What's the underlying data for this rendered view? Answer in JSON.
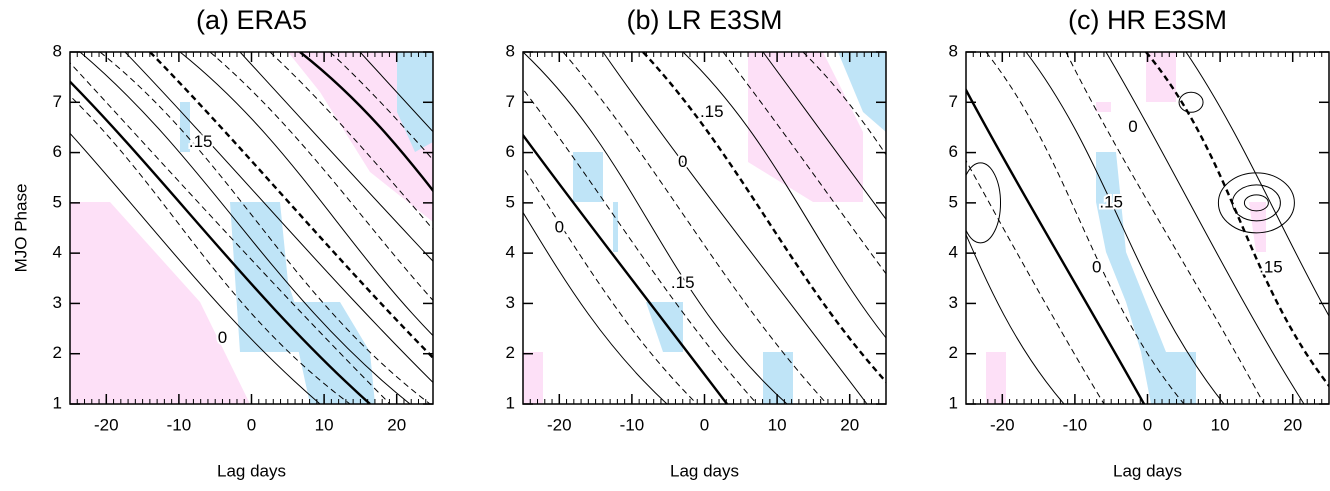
{
  "chart_data": [
    {
      "type": "contour",
      "title": "(a) ERA5",
      "x_label": "Lag days",
      "y_label": "MJO Phase",
      "xlim": [
        -25,
        25
      ],
      "xticks": [
        -20,
        -10,
        0,
        10,
        20
      ],
      "ylim": [
        1,
        8
      ],
      "yticks": [
        1,
        2,
        3,
        4,
        5,
        6,
        7,
        8
      ],
      "annotations": [
        {
          "text": ".15",
          "x": -7,
          "y": 6.2
        },
        {
          "text": "0",
          "x": -4,
          "y": 2.3
        }
      ]
    },
    {
      "type": "contour",
      "title": "(b) LR E3SM",
      "x_label": "Lag days",
      "xlim": [
        -25,
        25
      ],
      "xticks": [
        -20,
        -10,
        0,
        10,
        20
      ],
      "ylim": [
        1,
        8
      ],
      "yticks": [
        1,
        2,
        3,
        4,
        5,
        6,
        7,
        8
      ],
      "annotations": [
        {
          "text": ".15",
          "x": 1,
          "y": 6.8
        },
        {
          "text": "0",
          "x": -3,
          "y": 5.8
        },
        {
          "text": "0",
          "x": -20,
          "y": 4.5
        },
        {
          "text": ".15",
          "x": -3,
          "y": 3.4
        }
      ]
    },
    {
      "type": "contour",
      "title": "(c) HR E3SM",
      "x_label": "Lag days",
      "xlim": [
        -25,
        25
      ],
      "xticks": [
        -20,
        -10,
        0,
        10,
        20
      ],
      "ylim": [
        1,
        8
      ],
      "yticks": [
        1,
        2,
        3,
        4,
        5,
        6,
        7,
        8
      ],
      "annotations": [
        {
          "text": "0",
          "x": -2,
          "y": 6.5
        },
        {
          "text": ".15",
          "x": -5,
          "y": 5
        },
        {
          "text": "0",
          "x": -7,
          "y": 3.7
        },
        {
          "text": ".15",
          "x": 17,
          "y": 3.7
        }
      ]
    }
  ]
}
